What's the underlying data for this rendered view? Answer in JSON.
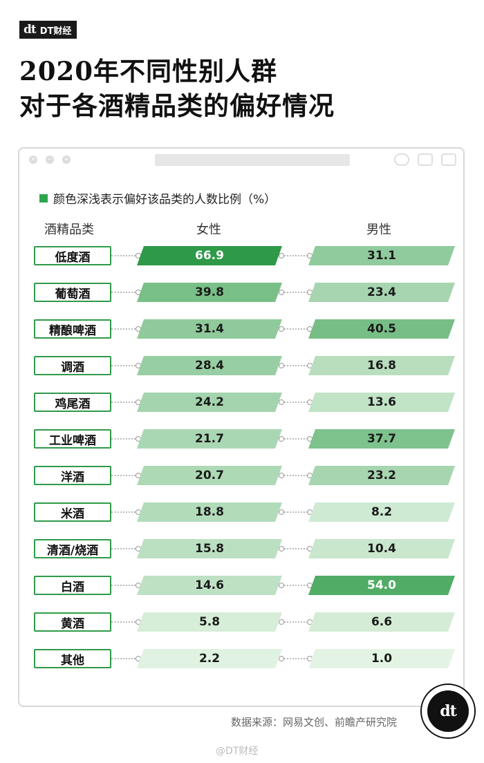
{
  "logo": {
    "mark": "dt",
    "text": "DT财经"
  },
  "title": {
    "line1": "2020年不同性别人群",
    "line2": "对于各酒精品类的偏好情况"
  },
  "colors": {
    "accent": "#2ea44f",
    "dark_green": "#2e9a48",
    "light_green": "#e6f5e6"
  },
  "chart_data": {
    "type": "table",
    "legend": "颜色深浅表示偏好该品类的人数比例（%）",
    "header": {
      "category": "酒精品类",
      "female": "女性",
      "male": "男性"
    },
    "categories": [
      "低度酒",
      "葡萄酒",
      "精酿啤酒",
      "调酒",
      "鸡尾酒",
      "工业啤酒",
      "洋酒",
      "米酒",
      "清酒/烧酒",
      "白酒",
      "黄酒",
      "其他"
    ],
    "series": [
      {
        "name": "女性",
        "values": [
          "66.9",
          "39.8",
          "31.4",
          "28.4",
          "24.2",
          "21.7",
          "20.7",
          "18.8",
          "15.8",
          "14.6",
          "5.8",
          "2.2"
        ]
      },
      {
        "name": "男性",
        "values": [
          "31.1",
          "23.4",
          "40.5",
          "16.8",
          "13.6",
          "37.7",
          "23.2",
          "8.2",
          "10.4",
          "54.0",
          "6.6",
          "1.0"
        ]
      }
    ],
    "scale_max": 66.9
  },
  "source": "数据来源：网易文创、前瞻产研究院",
  "badge": {
    "mark": "dt"
  },
  "watermark": "@DT财经"
}
